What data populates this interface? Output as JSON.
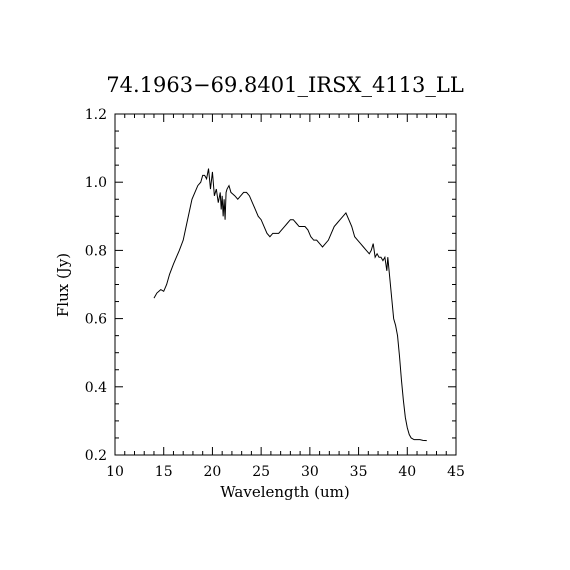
{
  "chart_data": {
    "type": "line",
    "title": "74.1963−69.8401_IRSX_4113_LL",
    "xlabel": "Wavelength (um)",
    "ylabel": "Flux (Jy)",
    "xlim": [
      10,
      45
    ],
    "ylim": [
      0.2,
      1.2
    ],
    "x_ticks": [
      "10",
      "15",
      "20",
      "25",
      "30",
      "35",
      "40",
      "45"
    ],
    "y_ticks": [
      "0.2",
      "0.4",
      "0.6",
      "0.8",
      "1.0",
      "1.2"
    ],
    "grid": false,
    "series": [
      {
        "color": "#000000",
        "points": [
          [
            14.0,
            0.66
          ],
          [
            14.3,
            0.675
          ],
          [
            14.7,
            0.685
          ],
          [
            15.0,
            0.68
          ],
          [
            15.3,
            0.7
          ],
          [
            15.6,
            0.73
          ],
          [
            16.0,
            0.76
          ],
          [
            16.3,
            0.78
          ],
          [
            16.6,
            0.8
          ],
          [
            17.0,
            0.83
          ],
          [
            17.3,
            0.87
          ],
          [
            17.6,
            0.91
          ],
          [
            17.9,
            0.95
          ],
          [
            18.2,
            0.97
          ],
          [
            18.5,
            0.99
          ],
          [
            18.8,
            1.0
          ],
          [
            19.0,
            1.02
          ],
          [
            19.2,
            1.02
          ],
          [
            19.4,
            1.01
          ],
          [
            19.6,
            1.04
          ],
          [
            19.8,
            0.98
          ],
          [
            20.0,
            1.03
          ],
          [
            20.2,
            0.96
          ],
          [
            20.4,
            0.98
          ],
          [
            20.6,
            0.94
          ],
          [
            20.8,
            0.97
          ],
          [
            20.9,
            0.92
          ],
          [
            21.0,
            0.96
          ],
          [
            21.1,
            0.9
          ],
          [
            21.2,
            0.95
          ],
          [
            21.3,
            0.89
          ],
          [
            21.4,
            0.97
          ],
          [
            21.5,
            0.98
          ],
          [
            21.7,
            0.99
          ],
          [
            21.9,
            0.97
          ],
          [
            22.1,
            0.965
          ],
          [
            22.3,
            0.96
          ],
          [
            22.6,
            0.95
          ],
          [
            22.9,
            0.96
          ],
          [
            23.2,
            0.97
          ],
          [
            23.5,
            0.97
          ],
          [
            23.8,
            0.96
          ],
          [
            24.1,
            0.94
          ],
          [
            24.4,
            0.92
          ],
          [
            24.7,
            0.9
          ],
          [
            25.0,
            0.89
          ],
          [
            25.3,
            0.87
          ],
          [
            25.6,
            0.85
          ],
          [
            25.9,
            0.84
          ],
          [
            26.2,
            0.85
          ],
          [
            26.5,
            0.85
          ],
          [
            26.8,
            0.85
          ],
          [
            27.1,
            0.86
          ],
          [
            27.4,
            0.87
          ],
          [
            27.7,
            0.88
          ],
          [
            28.0,
            0.89
          ],
          [
            28.3,
            0.89
          ],
          [
            28.6,
            0.88
          ],
          [
            28.9,
            0.87
          ],
          [
            29.2,
            0.87
          ],
          [
            29.5,
            0.87
          ],
          [
            29.8,
            0.86
          ],
          [
            30.1,
            0.84
          ],
          [
            30.4,
            0.83
          ],
          [
            30.7,
            0.83
          ],
          [
            31.0,
            0.82
          ],
          [
            31.3,
            0.81
          ],
          [
            31.6,
            0.82
          ],
          [
            31.9,
            0.83
          ],
          [
            32.2,
            0.85
          ],
          [
            32.5,
            0.87
          ],
          [
            32.8,
            0.88
          ],
          [
            33.1,
            0.89
          ],
          [
            33.4,
            0.9
          ],
          [
            33.7,
            0.91
          ],
          [
            34.0,
            0.89
          ],
          [
            34.3,
            0.87
          ],
          [
            34.6,
            0.84
          ],
          [
            34.9,
            0.83
          ],
          [
            35.2,
            0.82
          ],
          [
            35.5,
            0.81
          ],
          [
            35.8,
            0.8
          ],
          [
            36.1,
            0.79
          ],
          [
            36.3,
            0.8
          ],
          [
            36.5,
            0.82
          ],
          [
            36.7,
            0.78
          ],
          [
            36.9,
            0.79
          ],
          [
            37.1,
            0.78
          ],
          [
            37.3,
            0.78
          ],
          [
            37.5,
            0.77
          ],
          [
            37.7,
            0.78
          ],
          [
            37.9,
            0.74
          ],
          [
            38.0,
            0.78
          ],
          [
            38.1,
            0.75
          ],
          [
            38.2,
            0.72
          ],
          [
            38.4,
            0.66
          ],
          [
            38.6,
            0.6
          ],
          [
            38.8,
            0.58
          ],
          [
            39.0,
            0.55
          ],
          [
            39.2,
            0.49
          ],
          [
            39.4,
            0.42
          ],
          [
            39.6,
            0.36
          ],
          [
            39.8,
            0.31
          ],
          [
            40.0,
            0.28
          ],
          [
            40.2,
            0.26
          ],
          [
            40.4,
            0.25
          ],
          [
            40.7,
            0.245
          ],
          [
            41.0,
            0.245
          ],
          [
            41.3,
            0.245
          ],
          [
            41.6,
            0.243
          ],
          [
            42.0,
            0.242
          ]
        ]
      }
    ]
  }
}
